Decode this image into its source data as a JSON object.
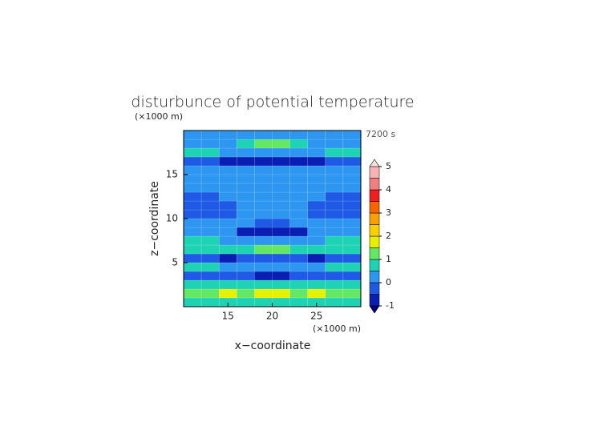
{
  "chart_data": {
    "type": "contour",
    "title": "disturbunce of potential temperature",
    "time_label": "7200 s",
    "x_label": "x−coordinate",
    "y_label": "z−coordinate",
    "x_unit": "(×1000 m)",
    "y_unit": "(×1000 m)",
    "xlim": [
      10,
      30
    ],
    "xticks": [
      15,
      20,
      25
    ],
    "ylim": [
      0,
      20
    ],
    "yticks": [
      5,
      10,
      15
    ],
    "x": [
      11,
      13,
      15,
      17,
      19,
      21,
      23,
      25,
      27,
      29
    ],
    "z": [
      0.5,
      1.5,
      2.5,
      3.5,
      4.5,
      5.5,
      6.5,
      7.5,
      8.5,
      9.5,
      10.5,
      11.5,
      12.5,
      13.5,
      14.5,
      15.5,
      16.5,
      17.5,
      18.5,
      19.5
    ],
    "values": [
      [
        0.8,
        0.8,
        0.9,
        0.8,
        0.9,
        0.9,
        0.8,
        0.9,
        0.8,
        0.8
      ],
      [
        1.2,
        1.3,
        1.6,
        1.4,
        1.6,
        1.6,
        1.4,
        1.6,
        1.3,
        1.2
      ],
      [
        0.6,
        0.6,
        0.7,
        0.6,
        0.7,
        0.7,
        0.6,
        0.7,
        0.6,
        0.6
      ],
      [
        -0.3,
        -0.3,
        -0.2,
        -0.3,
        -0.6,
        -0.6,
        -0.3,
        -0.2,
        -0.3,
        -0.3
      ],
      [
        0.7,
        0.7,
        0.4,
        0.3,
        0.3,
        0.3,
        0.3,
        0.4,
        0.7,
        0.7
      ],
      [
        -0.4,
        -0.4,
        -0.6,
        -0.4,
        -0.4,
        -0.4,
        -0.4,
        -0.6,
        -0.4,
        -0.4
      ],
      [
        0.6,
        0.6,
        0.6,
        0.7,
        1.2,
        1.2,
        0.7,
        0.6,
        0.6,
        0.6
      ],
      [
        0.7,
        0.7,
        0.3,
        0.2,
        0.2,
        0.2,
        0.2,
        0.3,
        0.7,
        0.7
      ],
      [
        0.2,
        0.2,
        0.2,
        -0.6,
        -0.6,
        -0.6,
        -0.6,
        0.2,
        0.2,
        0.2
      ],
      [
        0.2,
        0.2,
        0.2,
        0.2,
        -0.3,
        -0.3,
        0.2,
        0.2,
        0.2,
        0.2
      ],
      [
        -0.1,
        -0.1,
        -0.1,
        0.2,
        0.2,
        0.2,
        0.2,
        -0.1,
        -0.1,
        -0.1
      ],
      [
        -0.1,
        -0.1,
        -0.1,
        0.2,
        0.2,
        0.2,
        0.2,
        -0.1,
        -0.1,
        -0.1
      ],
      [
        -0.1,
        -0.1,
        0.2,
        0.2,
        0.2,
        0.2,
        0.2,
        0.2,
        -0.1,
        -0.1
      ],
      [
        0.2,
        0.2,
        0.2,
        0.2,
        0.2,
        0.2,
        0.2,
        0.2,
        0.2,
        0.2
      ],
      [
        0.2,
        0.2,
        0.2,
        0.2,
        0.2,
        0.2,
        0.2,
        0.2,
        0.2,
        0.2
      ],
      [
        0.2,
        0.2,
        0.2,
        0.2,
        0.2,
        0.2,
        0.2,
        0.2,
        0.2,
        0.2
      ],
      [
        -0.3,
        -0.4,
        -0.7,
        -0.7,
        -0.7,
        -0.7,
        -0.7,
        -0.7,
        -0.4,
        -0.3
      ],
      [
        0.6,
        0.6,
        0.3,
        0.3,
        0.3,
        0.3,
        0.3,
        0.3,
        0.6,
        0.6
      ],
      [
        0.2,
        0.2,
        0.2,
        0.7,
        1.1,
        1.1,
        0.7,
        0.2,
        0.2,
        0.2
      ],
      [
        0.2,
        0.2,
        0.2,
        0.2,
        0.2,
        0.2,
        0.2,
        0.2,
        0.2,
        0.2
      ]
    ],
    "levels": [
      -1,
      -0.5,
      0,
      0.5,
      1,
      1.5,
      2,
      2.5,
      3,
      3.5,
      4,
      4.5,
      5
    ],
    "colors": [
      "#0a1eb4",
      "#1e5ae6",
      "#2c96f0",
      "#1ed2b4",
      "#64e864",
      "#e6f000",
      "#f8d000",
      "#f8a000",
      "#f86400",
      "#f01e1e",
      "#f08080",
      "#f8b4b4"
    ],
    "under_color": "#000080",
    "over_color": "#f8e0e0",
    "colorbar_ticks": [
      -1,
      0,
      1,
      2,
      3,
      4,
      5
    ]
  }
}
